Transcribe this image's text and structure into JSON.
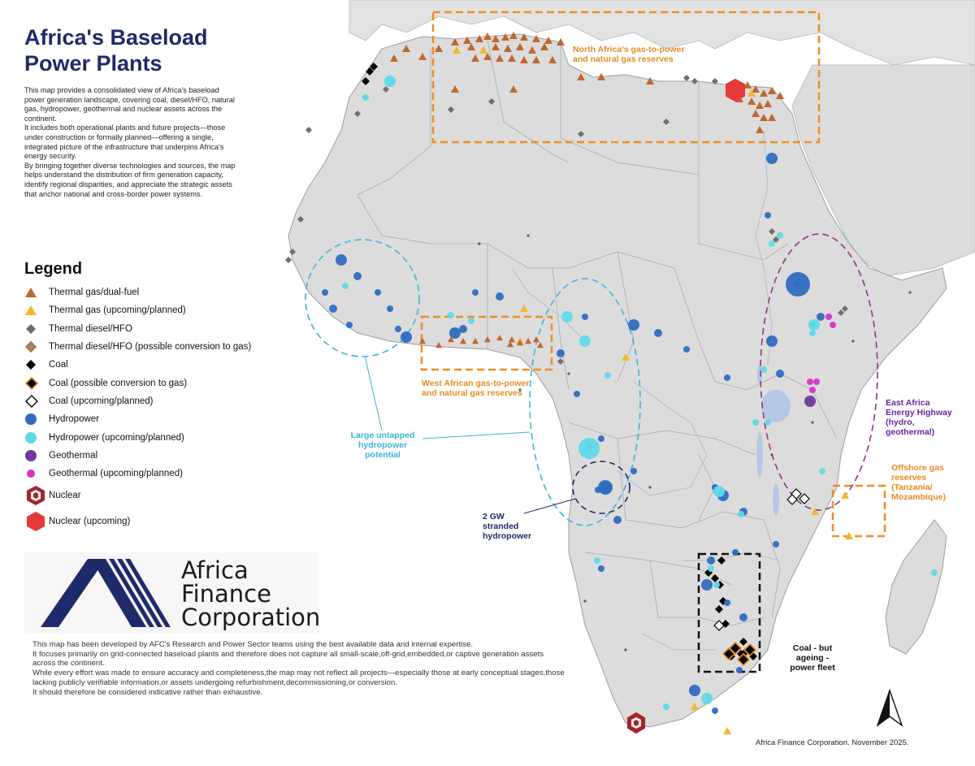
{
  "title": {
    "line1": "Africa's Baseload",
    "line2": "Power Plants"
  },
  "description": [
    "This map provides a consolidated view of Africa's baseload power generation landscape, covering coal, diesel/HFO, natural gas, hydropower, geothermal and nuclear assets across the continent.",
    "It includes both operational plants and future projects—those under construction or formally planned—offering a single, integrated picture of the infrastructure that underpins Africa's energy security.",
    "By bringing together diverse technologies and sources, the map helps understand the distribution of firm generation capacity, identify regional disparities, and appreciate the strategic assets that anchor national and cross-border power systems."
  ],
  "legend": {
    "title": "Legend",
    "items": [
      {
        "label": "Thermal gas/dual-fuel",
        "icon": "triangle-icon",
        "color": "#c0672e"
      },
      {
        "label": "Thermal gas (upcoming/planned)",
        "icon": "triangle-icon",
        "color": "#f4b62e"
      },
      {
        "label": "Thermal diesel/HFO",
        "icon": "diamond-icon",
        "color": "#6e6e6e"
      },
      {
        "label": "Thermal diesel/HFO (possible conversion to gas)",
        "icon": "diamond-outline-icon",
        "color": "#8a8a8a"
      },
      {
        "label": "Coal",
        "icon": "diamond-icon",
        "color": "#000000"
      },
      {
        "label": "Coal (possible conversion to gas)",
        "icon": "diamond-outline-icon",
        "color": "#000000"
      },
      {
        "label": "Coal (upcoming/planned)",
        "icon": "diamond-open-icon",
        "color": "#000000"
      },
      {
        "label": "Hydropower",
        "icon": "circle-icon",
        "color": "#2e6bbf"
      },
      {
        "label": "Hydropower (upcoming/planned)",
        "icon": "circle-icon",
        "color": "#5fd9e8"
      },
      {
        "label": "Geothermal",
        "icon": "circle-icon",
        "color": "#6a3a9c"
      },
      {
        "label": "Geothermal (upcoming/planned)",
        "icon": "circle-icon",
        "color": "#d633c8"
      },
      {
        "label": "Nuclear",
        "icon": "hexagon-icon",
        "color": "#a3242b"
      },
      {
        "label": "Nuclear (upcoming)",
        "icon": "hexagon-icon",
        "color": "#e53a3a"
      }
    ]
  },
  "annotations": {
    "north": [
      "North Africa's gas-to-power",
      "and natural gas reserves"
    ],
    "west": [
      "West African gas-to-power",
      "and natural gas reserves"
    ],
    "hydro": [
      "Large untapped",
      "hydropower",
      "potential"
    ],
    "stranded": [
      "2 GW",
      "stranded",
      "hydropower"
    ],
    "east": [
      "East Africa",
      "Energy Highway",
      "(hydro,",
      "geothermal)"
    ],
    "offshore": [
      "Offshore gas",
      "reserves",
      "(Tanzania/",
      "Mozambique)"
    ],
    "coal": [
      "Coal - but",
      "ageing -",
      "power fleet"
    ]
  },
  "logo": {
    "line1": "Africa",
    "line2": "Finance",
    "line3": "Corporation"
  },
  "disclaimer": [
    "This map has been developed by AFC's Research and Power Sector teams using the best available data and internal expertise.",
    "It focuses primarily on grid-connected baseload plants and therefore does not capture all small-scale,off-grid,embedded,or captive generation assets across the continent.",
    "While every effort was made to ensure accuracy and completeness,the map may not reflect all projects—especially those at early conceptual stages,those lacking publicly verifiable information,or assets undergoing refurbishment,decommissioning,or conversion.",
    "It should therefore be considered indicative rather than exhaustive."
  ],
  "credit": "Africa Finance Corporation. November 2025.",
  "colors": {
    "land": "#dcdcdc",
    "border": "#a9a9a9",
    "water": "#ffffff",
    "orange_box": "#f08c20",
    "blue_ellipse": "#3ab4dc",
    "navy": "#1f2a6b",
    "purple_ellipse": "#9a2e8c"
  }
}
